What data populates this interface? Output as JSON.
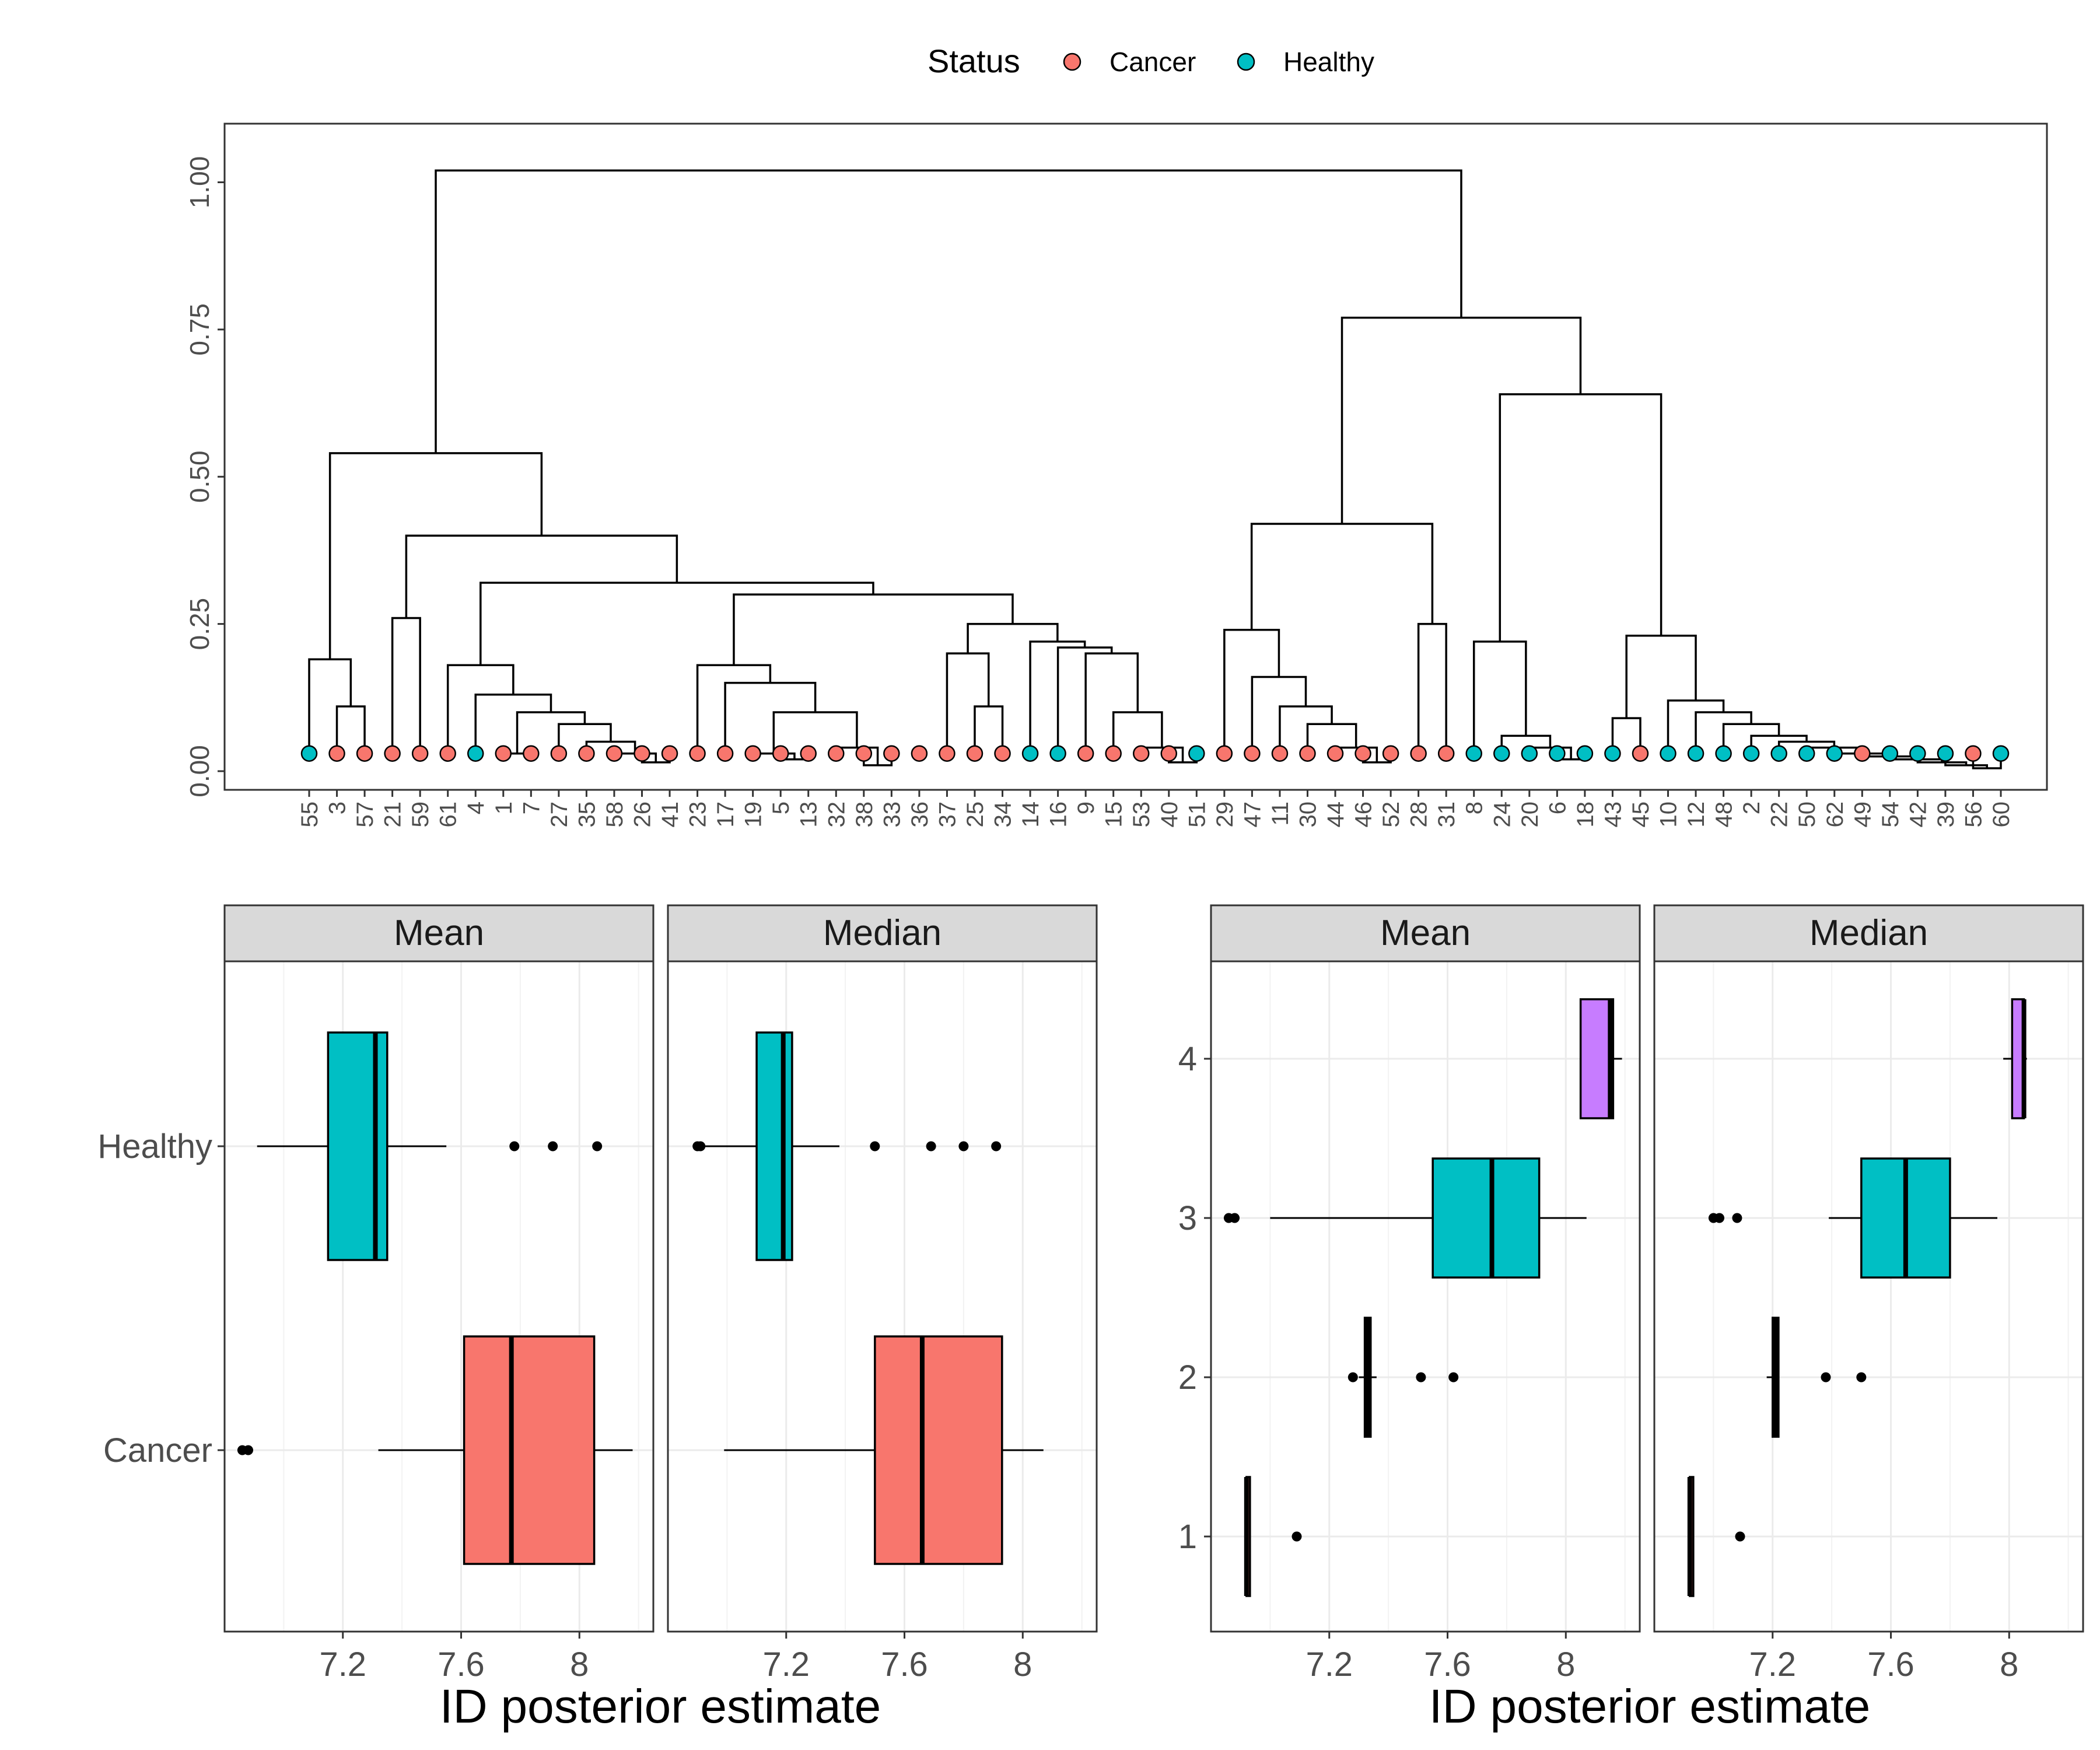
{
  "legend": {
    "title": "Status",
    "items": [
      {
        "label": "Cancer",
        "color": "#F8766D"
      },
      {
        "label": "Healthy",
        "color": "#00BFC4"
      }
    ]
  },
  "chart_data": [
    {
      "type": "dendrogram",
      "ylim": [
        0,
        1.05
      ],
      "yticks": [
        "0.00",
        "0.25",
        "0.50",
        "0.75",
        "1.00"
      ],
      "leaves": [
        {
          "label": "55",
          "status": "Healthy"
        },
        {
          "label": "3",
          "status": "Cancer"
        },
        {
          "label": "57",
          "status": "Cancer"
        },
        {
          "label": "21",
          "status": "Cancer"
        },
        {
          "label": "59",
          "status": "Cancer"
        },
        {
          "label": "61",
          "status": "Cancer"
        },
        {
          "label": "4",
          "status": "Healthy"
        },
        {
          "label": "1",
          "status": "Cancer"
        },
        {
          "label": "7",
          "status": "Cancer"
        },
        {
          "label": "27",
          "status": "Cancer"
        },
        {
          "label": "35",
          "status": "Cancer"
        },
        {
          "label": "58",
          "status": "Cancer"
        },
        {
          "label": "26",
          "status": "Cancer"
        },
        {
          "label": "41",
          "status": "Cancer"
        },
        {
          "label": "23",
          "status": "Cancer"
        },
        {
          "label": "17",
          "status": "Cancer"
        },
        {
          "label": "19",
          "status": "Cancer"
        },
        {
          "label": "5",
          "status": "Cancer"
        },
        {
          "label": "13",
          "status": "Cancer"
        },
        {
          "label": "32",
          "status": "Cancer"
        },
        {
          "label": "38",
          "status": "Cancer"
        },
        {
          "label": "33",
          "status": "Cancer"
        },
        {
          "label": "36",
          "status": "Cancer"
        },
        {
          "label": "37",
          "status": "Cancer"
        },
        {
          "label": "25",
          "status": "Cancer"
        },
        {
          "label": "34",
          "status": "Cancer"
        },
        {
          "label": "14",
          "status": "Healthy"
        },
        {
          "label": "16",
          "status": "Healthy"
        },
        {
          "label": "9",
          "status": "Cancer"
        },
        {
          "label": "15",
          "status": "Cancer"
        },
        {
          "label": "53",
          "status": "Cancer"
        },
        {
          "label": "40",
          "status": "Cancer"
        },
        {
          "label": "51",
          "status": "Healthy"
        },
        {
          "label": "29",
          "status": "Cancer"
        },
        {
          "label": "47",
          "status": "Cancer"
        },
        {
          "label": "11",
          "status": "Cancer"
        },
        {
          "label": "30",
          "status": "Cancer"
        },
        {
          "label": "44",
          "status": "Cancer"
        },
        {
          "label": "46",
          "status": "Cancer"
        },
        {
          "label": "52",
          "status": "Cancer"
        },
        {
          "label": "28",
          "status": "Cancer"
        },
        {
          "label": "31",
          "status": "Cancer"
        },
        {
          "label": "8",
          "status": "Healthy"
        },
        {
          "label": "24",
          "status": "Healthy"
        },
        {
          "label": "20",
          "status": "Healthy"
        },
        {
          "label": "6",
          "status": "Healthy"
        },
        {
          "label": "18",
          "status": "Healthy"
        },
        {
          "label": "43",
          "status": "Healthy"
        },
        {
          "label": "45",
          "status": "Cancer"
        },
        {
          "label": "10",
          "status": "Healthy"
        },
        {
          "label": "12",
          "status": "Healthy"
        },
        {
          "label": "48",
          "status": "Healthy"
        },
        {
          "label": "2",
          "status": "Healthy"
        },
        {
          "label": "22",
          "status": "Healthy"
        },
        {
          "label": "50",
          "status": "Healthy"
        },
        {
          "label": "62",
          "status": "Healthy"
        },
        {
          "label": "49",
          "status": "Cancer"
        },
        {
          "label": "54",
          "status": "Healthy"
        },
        {
          "label": "42",
          "status": "Healthy"
        },
        {
          "label": "39",
          "status": "Healthy"
        },
        {
          "label": "56",
          "status": "Cancer"
        },
        {
          "label": "60",
          "status": "Healthy"
        }
      ],
      "merges": [
        [
          1,
          2,
          0.11
        ],
        [
          0,
          "m0",
          0.19
        ],
        [
          3,
          4,
          0.26
        ],
        [
          7,
          8,
          0.03
        ],
        [
          12,
          13,
          0.015
        ],
        [
          11,
          "m4",
          0.03
        ],
        [
          10,
          "m5",
          0.05
        ],
        [
          9,
          "m6",
          0.08
        ],
        [
          "m3",
          "m7",
          0.1
        ],
        [
          6,
          "m8",
          0.13
        ],
        [
          5,
          "m9",
          0.18
        ],
        [
          17,
          18,
          0.02
        ],
        [
          16,
          "m11",
          0.03
        ],
        [
          20,
          21,
          0.01
        ],
        [
          19,
          "m13",
          0.04
        ],
        [
          "m12",
          "m14",
          0.1
        ],
        [
          15,
          "m15",
          0.15
        ],
        [
          14,
          "m16",
          0.18
        ],
        [
          24,
          25,
          0.11
        ],
        [
          23,
          "m18",
          0.2
        ],
        [
          31,
          32,
          0.015
        ],
        [
          30,
          "m20",
          0.04
        ],
        [
          29,
          "m21",
          0.1
        ],
        [
          28,
          "m22",
          0.2
        ],
        [
          27,
          "m23",
          0.21
        ],
        [
          26,
          "m24",
          0.22
        ],
        [
          "m19",
          "m25",
          0.25
        ],
        [
          "m17",
          "m26",
          0.3
        ],
        [
          "m10",
          "m27",
          0.32
        ],
        [
          "m2",
          "m28",
          0.4
        ],
        [
          "m1",
          "m29",
          0.54
        ],
        [
          38,
          39,
          0.015
        ],
        [
          37,
          "m31",
          0.04
        ],
        [
          36,
          "m32",
          0.08
        ],
        [
          35,
          "m33",
          0.11
        ],
        [
          34,
          "m34",
          0.16
        ],
        [
          33,
          "m35",
          0.24
        ],
        [
          40,
          41,
          0.25
        ],
        [
          "m36",
          "m37",
          0.42
        ],
        [
          45,
          46,
          0.02
        ],
        [
          44,
          "m39",
          0.04
        ],
        [
          43,
          "m40",
          0.06
        ],
        [
          42,
          "m41",
          0.22
        ],
        [
          47,
          48,
          0.09
        ],
        [
          60,
          61,
          0.005
        ],
        [
          59,
          "m44",
          0.01
        ],
        [
          58,
          "m45",
          0.015
        ],
        [
          57,
          "m46",
          0.02
        ],
        [
          56,
          "m47",
          0.025
        ],
        [
          55,
          "m48",
          0.03
        ],
        [
          54,
          "m49",
          0.04
        ],
        [
          53,
          "m50",
          0.05
        ],
        [
          52,
          "m51",
          0.06
        ],
        [
          51,
          "m52",
          0.08
        ],
        [
          50,
          "m53",
          0.1
        ],
        [
          49,
          "m54",
          0.12
        ],
        [
          "m43",
          "m55",
          0.23
        ],
        [
          "m42",
          "m56",
          0.64
        ],
        [
          "m38",
          "m57",
          0.77
        ],
        [
          "m30",
          "m58",
          1.02
        ]
      ]
    },
    {
      "type": "boxplot",
      "orientation": "horizontal",
      "facets": [
        "Mean",
        "Median"
      ],
      "categories": [
        "Healthy",
        "Cancer"
      ],
      "xlabel": "ID posterior estimate",
      "xlim": [
        6.8,
        8.25
      ],
      "xticks": [
        7.2,
        7.6,
        8.0
      ],
      "boxes": {
        "Mean": [
          {
            "category": "Healthy",
            "color": "#00BFC4",
            "whisker_lo": 6.91,
            "q1": 7.15,
            "median": 7.31,
            "q3": 7.35,
            "whisker_hi": 7.55,
            "outliers": [
              7.78,
              7.91,
              8.06
            ]
          },
          {
            "category": "Cancer",
            "color": "#F8766D",
            "whisker_lo": 7.32,
            "q1": 7.61,
            "median": 7.77,
            "q3": 8.05,
            "whisker_hi": 8.18,
            "outliers": [
              6.86,
              6.88
            ]
          }
        ],
        "Median": [
          {
            "category": "Healthy",
            "color": "#00BFC4",
            "whisker_lo": 6.91,
            "q1": 7.1,
            "median": 7.19,
            "q3": 7.22,
            "whisker_hi": 7.38,
            "outliers": [
              6.9,
              6.91,
              7.5,
              7.69,
              7.8,
              7.91
            ]
          },
          {
            "category": "Cancer",
            "color": "#F8766D",
            "whisker_lo": 6.99,
            "q1": 7.5,
            "median": 7.66,
            "q3": 7.93,
            "whisker_hi": 8.07,
            "outliers": []
          }
        ]
      }
    },
    {
      "type": "boxplot",
      "orientation": "horizontal",
      "facets": [
        "Mean",
        "Median"
      ],
      "categories": [
        "4",
        "3",
        "2",
        "1"
      ],
      "xlabel": "ID posterior estimate",
      "xlim": [
        6.8,
        8.25
      ],
      "xticks": [
        7.2,
        7.6,
        8.0
      ],
      "boxes": {
        "Mean": [
          {
            "category": "4",
            "color": "#C77CFF",
            "whisker_lo": 8.05,
            "q1": 8.05,
            "median": 8.15,
            "q3": 8.16,
            "whisker_hi": 8.19,
            "outliers": []
          },
          {
            "category": "3",
            "color": "#00BFC4",
            "whisker_lo": 7.0,
            "q1": 7.55,
            "median": 7.75,
            "q3": 7.91,
            "whisker_hi": 8.07,
            "outliers": [
              6.86,
              6.88
            ]
          },
          {
            "category": "2",
            "color": "#7CAE00",
            "whisker_lo": 7.3,
            "q1": 7.32,
            "median": 7.33,
            "q3": 7.34,
            "whisker_hi": 7.36,
            "outliers": [
              7.28,
              7.51,
              7.62
            ]
          },
          {
            "category": "1",
            "color": "#F8766D",
            "whisker_lo": 6.92,
            "q1": 6.92,
            "median": 6.92,
            "q3": 6.93,
            "whisker_hi": 6.93,
            "outliers": [
              7.09
            ]
          }
        ],
        "Median": [
          {
            "category": "4",
            "color": "#C77CFF",
            "whisker_lo": 7.98,
            "q1": 8.01,
            "median": 8.05,
            "q3": 8.05,
            "whisker_hi": 8.06,
            "outliers": []
          },
          {
            "category": "3",
            "color": "#00BFC4",
            "whisker_lo": 7.39,
            "q1": 7.5,
            "median": 7.65,
            "q3": 7.8,
            "whisker_hi": 7.96,
            "outliers": [
              7.0,
              7.02,
              7.08
            ]
          },
          {
            "category": "2",
            "color": "#7CAE00",
            "whisker_lo": 7.18,
            "q1": 7.2,
            "median": 7.21,
            "q3": 7.22,
            "whisker_hi": 7.22,
            "outliers": [
              7.38,
              7.5
            ]
          },
          {
            "category": "1",
            "color": "#F8766D",
            "whisker_lo": 6.92,
            "q1": 6.92,
            "median": 6.92,
            "q3": 6.93,
            "whisker_hi": 6.93,
            "outliers": [
              7.09
            ]
          }
        ]
      }
    }
  ]
}
